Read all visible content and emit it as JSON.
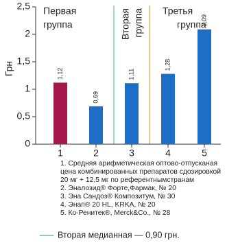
{
  "chart_data": {
    "type": "bar",
    "y_label": "Грн",
    "categories": [
      "1",
      "2",
      "3",
      "4",
      "5"
    ],
    "values": [
      1.12,
      0.69,
      1.11,
      1.28,
      2.09
    ],
    "value_labels": [
      "1,12",
      "0,69",
      "1,11",
      "1,28",
      "2,09"
    ],
    "colors": [
      "#a3174b",
      "#1f6ec5",
      "#1f6ec5",
      "#1f6ec5",
      "#1f6ec5"
    ],
    "ylim": [
      0,
      2.5
    ],
    "yticks": [
      0,
      {
        "value": 0.5,
        "label": "0,5"
      },
      1,
      {
        "value": 1.5,
        "label": "1,5"
      },
      2,
      {
        "value": 2.5,
        "label": "2,5"
      }
    ],
    "group_labels": [
      [
        "Первая",
        "группа"
      ],
      [
        "Вторая",
        "группа"
      ],
      [
        "Третья",
        "группа"
      ]
    ],
    "notes": [
      "1. Средняя арифметическая оптово-отпусканая цена комбинированных препаратов сдозировкой 20 мг + 12,5 мг по референтнымстранам",
      "2. Эналозид® Форте,Фармак, № 20",
      "3. Эна Сандоз® Композитум, № 30",
      "4. Энап® 20 HL, KRKA, № 20",
      "5. Ко-Ренитек®, Merck&Co., № 28"
    ],
    "legend": "Вторая медианная — 0,90 грн."
  }
}
